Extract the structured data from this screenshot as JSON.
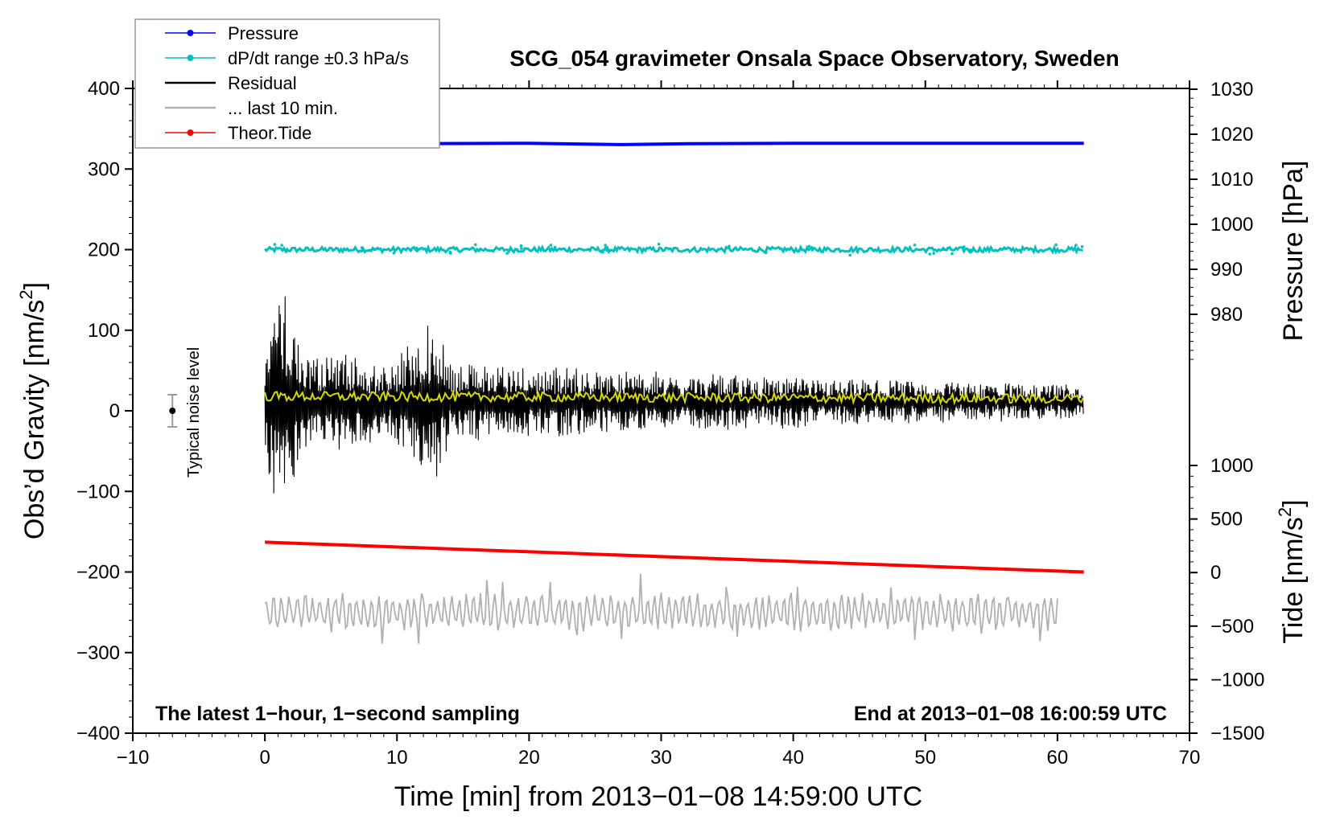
{
  "chart_data": {
    "type": "line",
    "title": "SCG_054 gravimeter Onsala Space Observatory, Sweden",
    "xlabel": "Time [min] from 2013−01−08 14:59:00 UTC",
    "ylabel_left_main": "Obs’d Gravity [nm/s",
    "ylabel_left_sup": "2",
    "ylabel_left_end": "]",
    "ylabel_right_pressure": "Pressure [hPa]",
    "ylabel_right_tide_main": "Tide [nm/s",
    "ylabel_right_tide_sup": "2",
    "ylabel_right_tide_end": "]",
    "xlim": [
      -10,
      70
    ],
    "ylim": [
      -400,
      400
    ],
    "pressure_lim": [
      970,
      1030
    ],
    "tide_lim": [
      -1500,
      1000
    ],
    "x_ticks": [
      -10,
      0,
      10,
      20,
      30,
      40,
      50,
      60,
      70
    ],
    "x_tick_labels": [
      "−10",
      "0",
      "10",
      "20",
      "30",
      "40",
      "50",
      "60",
      "70"
    ],
    "y_ticks": [
      400,
      300,
      200,
      100,
      0,
      -100,
      -200,
      -300,
      -400
    ],
    "y_tick_labels": [
      "400",
      "300",
      "200",
      "100",
      "0",
      "−100",
      "−200",
      "−300",
      "−400"
    ],
    "pressure_ticks": [
      1030,
      1020,
      1010,
      1000,
      990,
      980
    ],
    "pressure_tick_labels": [
      "1030",
      "1020",
      "1010",
      "1000",
      "990",
      "980"
    ],
    "tide_ticks": [
      1000,
      500,
      0,
      -500,
      -1000,
      -1500
    ],
    "tide_tick_labels": [
      "1000",
      "500",
      "0",
      "−500",
      "−1000",
      "−1500"
    ],
    "note_left": "The latest 1−hour, 1−second sampling",
    "note_right": "End at 2013−01−08 16:00:59 UTC",
    "noise_label": "Typical noise level",
    "noise_marker": {
      "x": -7,
      "y": 0,
      "err": 20
    },
    "legend": [
      {
        "label": "Pressure",
        "color": "#0000ff",
        "marker": true
      },
      {
        "label": "dP/dt range ±0.3 hPa/s",
        "color": "#00c0c0",
        "marker": true
      },
      {
        "label": "Residual",
        "color": "#000000",
        "marker": false
      },
      {
        "label": "... last 10 min.",
        "color": "#b0b0b0",
        "marker": false
      },
      {
        "label": "Theor.Tide",
        "color": "#ff0000",
        "marker": true
      }
    ],
    "colors": {
      "pressure": "#0000ff",
      "dpdt": "#00c0c0",
      "residual": "#000000",
      "residual_smooth": "#d8d800",
      "last10": "#b0b0b0",
      "tide": "#ff0000"
    },
    "series": [
      {
        "name": "Pressure",
        "axis": "pressure",
        "x": [
          0,
          10,
          20,
          27,
          32,
          40,
          50,
          62
        ],
        "values": [
          1017.8,
          1017.9,
          1018.0,
          1017.7,
          1017.9,
          1018.0,
          1018.0,
          1018.0
        ]
      },
      {
        "name": "dP/dt range ±0.3 hPa/s",
        "axis": "gravity",
        "x": [
          0,
          62
        ],
        "values": [
          200,
          200
        ],
        "band": 3
      },
      {
        "name": "Residual",
        "axis": "gravity",
        "x_start": 0,
        "x_end": 62,
        "envelope": [
          {
            "x": 0,
            "amp": 70
          },
          {
            "x": 1,
            "amp": 150
          },
          {
            "x": 2,
            "amp": 120
          },
          {
            "x": 3,
            "amp": 60
          },
          {
            "x": 6,
            "amp": 65
          },
          {
            "x": 7,
            "amp": 55
          },
          {
            "x": 9,
            "amp": 45
          },
          {
            "x": 10,
            "amp": 55
          },
          {
            "x": 12,
            "amp": 95
          },
          {
            "x": 13,
            "amp": 100
          },
          {
            "x": 14,
            "amp": 50
          },
          {
            "x": 20,
            "amp": 45
          },
          {
            "x": 30,
            "amp": 35
          },
          {
            "x": 40,
            "amp": 30
          },
          {
            "x": 50,
            "amp": 25
          },
          {
            "x": 62,
            "amp": 20
          }
        ],
        "center": 15
      },
      {
        "name": "Residual (smoothed)",
        "axis": "gravity",
        "x": [
          0,
          62
        ],
        "values": [
          18,
          15
        ]
      },
      {
        "name": "... last 10 min.",
        "axis": "gravity",
        "x_start": 0,
        "x_end": 60,
        "center": -250,
        "amp": 25
      },
      {
        "name": "Theor.Tide",
        "axis": "gravity",
        "x": [
          0,
          62
        ],
        "values": [
          -163,
          -200
        ]
      }
    ]
  }
}
